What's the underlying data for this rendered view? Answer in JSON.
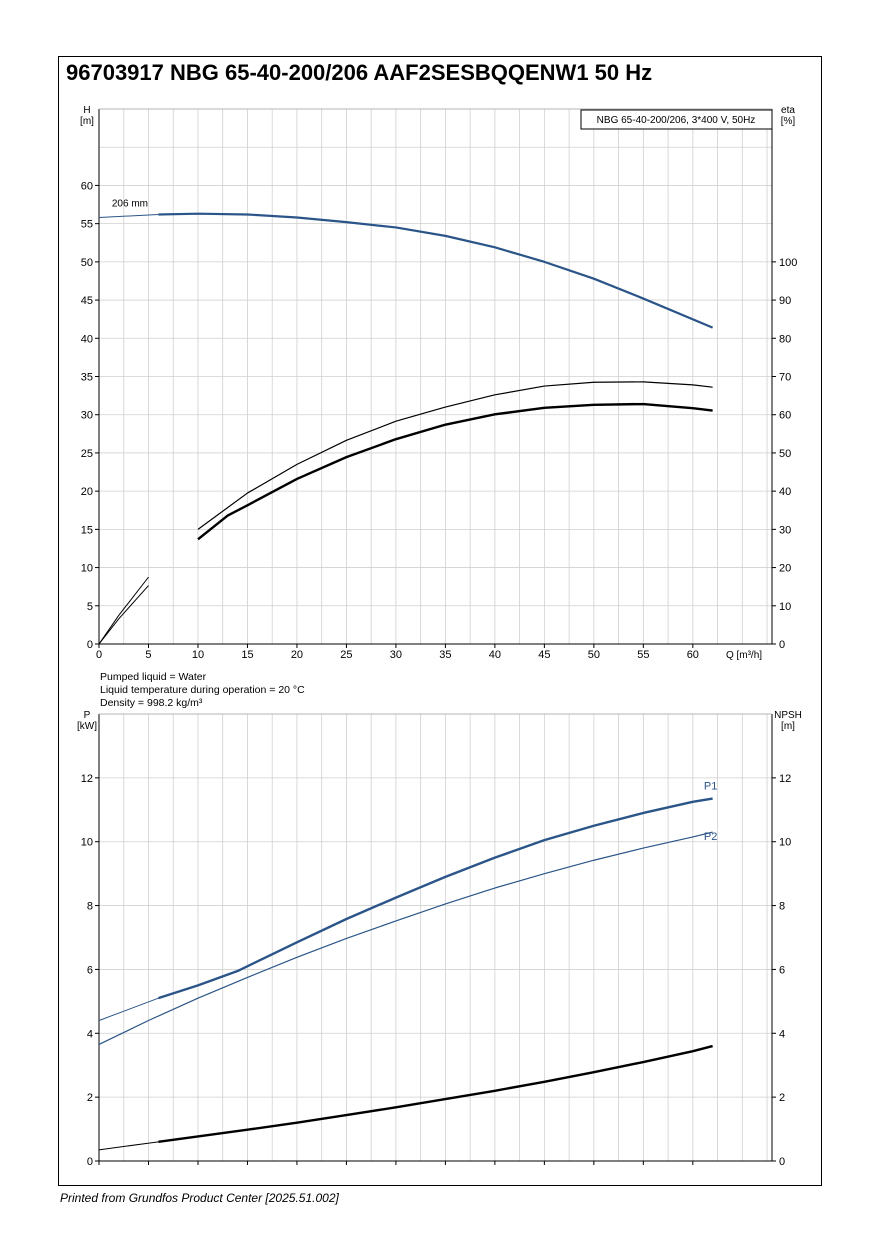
{
  "page": {
    "title": "96703917 NBG 65-40-200/206 AAF2SESBQQENW1 50 Hz",
    "footer": "Printed from Grundfos Product Center [2025.51.002]"
  },
  "conditions": {
    "liquid": "Pumped liquid = Water",
    "temperature": "Liquid temperature during operation = 20 °C",
    "density": "Density = 998.2 kg/m³"
  },
  "colors": {
    "blue": "#2b5588",
    "black": "#000000",
    "grid": "#d0d0d0"
  },
  "chart_data": [
    {
      "type": "line",
      "legend_box": "NBG 65-40-200/206, 3*400 V, 50Hz",
      "xlabel": "Q [m³/h]",
      "ylabel_left": {
        "name": "H",
        "unit": "[m]"
      },
      "ylabel_right": {
        "name": "eta",
        "unit": "[%]"
      },
      "xlim": [
        0,
        68
      ],
      "ylim_left": [
        0,
        70
      ],
      "ylim_right": [
        0,
        140
      ],
      "x_ticks": [
        0,
        5,
        10,
        15,
        20,
        25,
        30,
        35,
        40,
        45,
        50,
        55,
        60
      ],
      "y_ticks_left": [
        0,
        5,
        10,
        15,
        20,
        25,
        30,
        35,
        40,
        45,
        50,
        55,
        60
      ],
      "y_ticks_right": [
        0,
        10,
        20,
        30,
        40,
        50,
        60,
        70,
        80,
        90,
        100
      ],
      "grid": true,
      "series": [
        {
          "label": "206 mm",
          "axis": "left",
          "color": "#2b5588",
          "x": [
            0,
            6,
            10,
            15,
            20,
            25,
            30,
            35,
            40,
            45,
            50,
            55,
            62
          ],
          "y": [
            55.8,
            56.2,
            56.3,
            56.2,
            55.8,
            55.2,
            54.5,
            53.4,
            51.9,
            50.0,
            47.8,
            45.2,
            41.4
          ],
          "valid_from": 6
        },
        {
          "axis": "right",
          "color": "#000000",
          "weight": "thin",
          "x": [
            0,
            2,
            5,
            10,
            15,
            20,
            25,
            30,
            35,
            40,
            45,
            50,
            55,
            60,
            62
          ],
          "y": [
            0,
            7.5,
            17.5,
            30,
            39.5,
            47,
            53.3,
            58.3,
            62,
            65.2,
            67.5,
            68.5,
            68.6,
            67.8,
            67.2
          ],
          "valid_from": 6
        },
        {
          "axis": "right",
          "color": "#000000",
          "weight": "thick",
          "x": [
            0,
            2,
            5,
            10,
            13,
            15,
            20,
            25,
            30,
            35,
            40,
            45,
            50,
            55,
            60,
            62
          ],
          "y": [
            0,
            6.6,
            15.3,
            27.4,
            33.6,
            36.3,
            43.2,
            48.9,
            53.6,
            57.4,
            60.1,
            61.8,
            62.6,
            62.8,
            61.7,
            61.1
          ],
          "valid_from": 6
        }
      ]
    },
    {
      "type": "line",
      "xlabel": "",
      "ylabel_left": {
        "name": "P",
        "unit": "[kW]"
      },
      "ylabel_right": {
        "name": "NPSH",
        "unit": "[m]"
      },
      "xlim": [
        0,
        68
      ],
      "ylim_left": [
        0,
        14
      ],
      "ylim_right": [
        0,
        14
      ],
      "x_ticks": [
        0,
        5,
        10,
        15,
        20,
        25,
        30,
        35,
        40,
        45,
        50,
        55,
        60
      ],
      "y_ticks_left": [
        0,
        2,
        4,
        6,
        8,
        10,
        12
      ],
      "y_ticks_right": [
        0,
        2,
        4,
        6,
        8,
        10,
        12
      ],
      "grid": true,
      "series": [
        {
          "name": "P1",
          "axis": "left",
          "color": "#2b5588",
          "weight": "thick",
          "x": [
            0,
            6,
            10,
            14,
            20,
            25,
            30,
            35,
            40,
            45,
            50,
            55,
            60,
            62
          ],
          "y": [
            4.4,
            5.1,
            5.5,
            5.95,
            6.85,
            7.58,
            8.25,
            8.9,
            9.5,
            10.05,
            10.5,
            10.9,
            11.25,
            11.35
          ],
          "valid_from": 6
        },
        {
          "name": "P2",
          "axis": "left",
          "color": "#2b5588",
          "weight": "thin",
          "x": [
            0,
            5,
            10,
            15,
            20,
            25,
            30,
            35,
            40,
            45,
            50,
            55,
            60,
            62
          ],
          "y": [
            3.65,
            4.4,
            5.1,
            5.75,
            6.38,
            6.97,
            7.52,
            8.05,
            8.55,
            9.0,
            9.42,
            9.8,
            10.15,
            10.3
          ]
        },
        {
          "name": "NPSH",
          "axis": "right",
          "color": "#000000",
          "weight": "thick",
          "x": [
            0,
            6,
            10,
            15,
            20,
            25,
            30,
            35,
            40,
            45,
            50,
            55,
            60,
            62
          ],
          "y": [
            0.35,
            0.6,
            0.77,
            0.98,
            1.2,
            1.44,
            1.68,
            1.94,
            2.2,
            2.48,
            2.78,
            3.1,
            3.44,
            3.6
          ],
          "valid_from": 6
        }
      ]
    }
  ]
}
